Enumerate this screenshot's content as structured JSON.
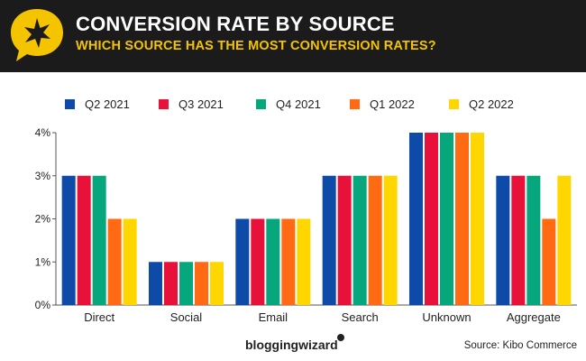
{
  "header": {
    "title": "CONVERSION RATE BY SOURCE",
    "subtitle": "WHICH SOURCE HAS THE MOST CONVERSION RATES?",
    "badge_icon": "star-icon"
  },
  "colors": {
    "header_bg": "#1b1b1b",
    "accent_yellow": "#f5c400",
    "series": [
      "#0e4aa8",
      "#e8113a",
      "#06a77d",
      "#ff6a13",
      "#ffd600"
    ]
  },
  "chart_data": {
    "type": "bar",
    "title": "CONVERSION RATE BY SOURCE",
    "xlabel": "",
    "ylabel": "",
    "categories": [
      "Direct",
      "Social",
      "Email",
      "Search",
      "Unknown",
      "Aggregate"
    ],
    "series": [
      {
        "name": "Q2 2021",
        "values": [
          3,
          1,
          2,
          3,
          4,
          3
        ]
      },
      {
        "name": "Q3 2021",
        "values": [
          3,
          1,
          2,
          3,
          4,
          3
        ]
      },
      {
        "name": "Q4 2021",
        "values": [
          3,
          1,
          2,
          3,
          4,
          3
        ]
      },
      {
        "name": "Q1 2022",
        "values": [
          2,
          1,
          2,
          3,
          4,
          2
        ]
      },
      {
        "name": "Q2 2022",
        "values": [
          2,
          1,
          2,
          3,
          4,
          3
        ]
      }
    ],
    "ylim": [
      0,
      4
    ],
    "yticks": [
      0,
      1,
      2,
      3,
      4
    ],
    "ytick_labels": [
      "0%",
      "1%",
      "2%",
      "3%",
      "4%"
    ],
    "grid": false,
    "legend_position": "top"
  },
  "footer": {
    "brand": "bloggingwizard",
    "source": "Source: Kibo Commerce"
  }
}
